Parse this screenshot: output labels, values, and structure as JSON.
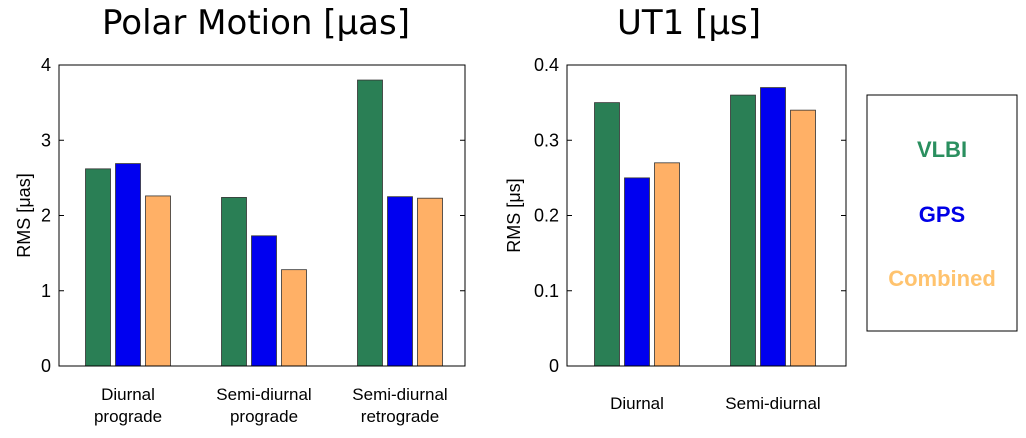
{
  "chart_data": [
    {
      "type": "bar",
      "title": "Polar Motion [μas]",
      "ylabel": "RMS [μas]",
      "xlabel": "",
      "ylim": [
        0,
        4
      ],
      "yticks": [
        "0",
        "1",
        "2",
        "3",
        "4"
      ],
      "categories": [
        [
          "Diurnal",
          "prograde"
        ],
        [
          "Semi-diurnal",
          "prograde"
        ],
        [
          "Semi-diurnal",
          "retrograde"
        ]
      ],
      "series": [
        {
          "name": "VLBI",
          "color": "#2a7f55",
          "values": [
            2.62,
            2.24,
            3.8
          ]
        },
        {
          "name": "GPS",
          "color": "#0000f0",
          "values": [
            2.69,
            1.73,
            2.25
          ]
        },
        {
          "name": "Combined",
          "color": "#ffb066",
          "values": [
            2.26,
            1.28,
            2.23
          ]
        }
      ],
      "grid": false
    },
    {
      "type": "bar",
      "title": "UT1 [μs]",
      "ylabel": "RMS [μs]",
      "xlabel": "",
      "ylim": [
        0,
        0.4
      ],
      "yticks": [
        "0",
        "0.1",
        "0.2",
        "0.3",
        "0.4"
      ],
      "categories": [
        [
          "Diurnal"
        ],
        [
          "Semi-diurnal"
        ]
      ],
      "series": [
        {
          "name": "VLBI",
          "color": "#2a7f55",
          "values": [
            0.35,
            0.36
          ]
        },
        {
          "name": "GPS",
          "color": "#0000f0",
          "values": [
            0.25,
            0.37
          ]
        },
        {
          "name": "Combined",
          "color": "#ffb066",
          "values": [
            0.27,
            0.34
          ]
        }
      ],
      "grid": false
    }
  ],
  "legend": {
    "placement": "right",
    "items": [
      {
        "label": "VLBI",
        "color": "#2a8f5f"
      },
      {
        "label": "GPS",
        "color": "#0000e6"
      },
      {
        "label": "Combined",
        "color": "#ffc36e"
      }
    ]
  }
}
